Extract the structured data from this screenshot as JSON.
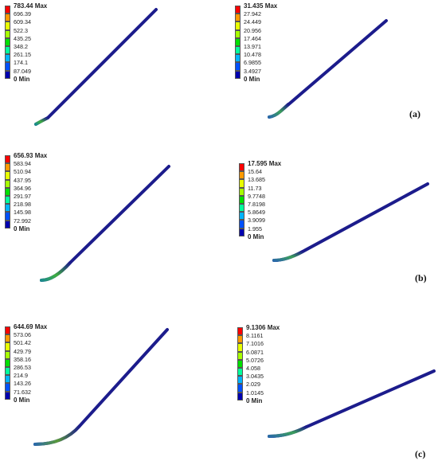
{
  "colors": {
    "pipe": "#1c1c8c",
    "scale": [
      "#ff0000",
      "#ff9a00",
      "#ffd400",
      "#e8ff00",
      "#a6ff00",
      "#00e000",
      "#00ff9c",
      "#00f0ff",
      "#00b4ff",
      "#0050ff",
      "#0000b0"
    ]
  },
  "legends": [
    {
      "name": "legend-a-left",
      "labels": [
        "783.44 Max",
        "696.39",
        "609.34",
        "522.3",
        "435.25",
        "348.2",
        "261.15",
        "174.1",
        "87.049",
        "0 Min"
      ]
    },
    {
      "name": "legend-a-right",
      "labels": [
        "31.435 Max",
        "27.942",
        "24.449",
        "20.956",
        "17.464",
        "13.971",
        "10.478",
        "6.9855",
        "3.4927",
        "0 Min"
      ]
    },
    {
      "name": "legend-b-left",
      "labels": [
        "656.93 Max",
        "583.94",
        "510.94",
        "437.95",
        "364.96",
        "291.97",
        "218.98",
        "145.98",
        "72.992",
        "0 Min"
      ]
    },
    {
      "name": "legend-b-right",
      "labels": [
        "17.595 Max",
        "15.64",
        "13.685",
        "11.73",
        "9.7748",
        "7.8198",
        "5.8649",
        "3.9099",
        "1.955",
        "0 Min"
      ]
    },
    {
      "name": "legend-c-left",
      "labels": [
        "644.69 Max",
        "573.06",
        "501.42",
        "429.79",
        "358.16",
        "286.53",
        "214.9",
        "143.26",
        "71.632",
        "0 Min"
      ]
    },
    {
      "name": "legend-c-right",
      "labels": [
        "9.1306 Max",
        "8.1161",
        "7.1016",
        "6.0871",
        "5.0726",
        "4.058",
        "3.0435",
        "2.029",
        "1.0145",
        "0 Min"
      ]
    }
  ],
  "captions": {
    "a": "(a)",
    "b": "(b)",
    "c": "(c)"
  }
}
